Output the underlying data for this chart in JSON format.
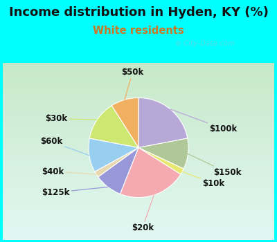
{
  "title": "Income distribution in Hyden, KY (%)",
  "subtitle": "White residents",
  "title_color": "#111111",
  "subtitle_color": "#cc7722",
  "background_outer": "#00ffff",
  "background_chart_top": "#e8f8f4",
  "background_chart_bottom": "#c8e8c8",
  "watermark": "City-Data.com",
  "slices": [
    {
      "label": "$100k",
      "value": 22,
      "color": "#b8a8d8"
    },
    {
      "label": "$150k",
      "value": 10,
      "color": "#b0c898"
    },
    {
      "label": "$10k",
      "value": 2,
      "color": "#e8e870"
    },
    {
      "label": "$20k",
      "value": 22,
      "color": "#f4aab0"
    },
    {
      "label": "$125k",
      "value": 9,
      "color": "#9898d8"
    },
    {
      "label": "$40k",
      "value": 2,
      "color": "#e8d8b0"
    },
    {
      "label": "$60k",
      "value": 11,
      "color": "#98cef0"
    },
    {
      "label": "$30k",
      "value": 13,
      "color": "#cce870"
    },
    {
      "label": "$50k",
      "value": 9,
      "color": "#f0b060"
    }
  ],
  "label_fontsize": 8.5,
  "title_fontsize": 13,
  "subtitle_fontsize": 10.5,
  "startangle": 90
}
